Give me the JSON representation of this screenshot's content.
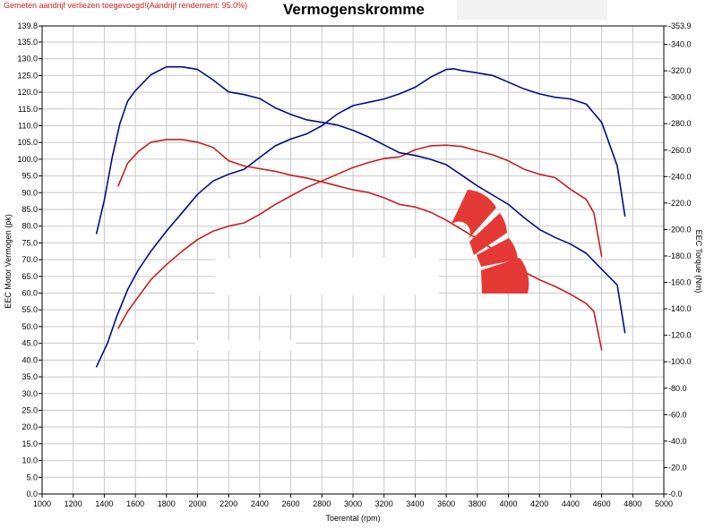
{
  "header": {
    "note": "Gemeten aandrijf verliezen toegevoegd!(Aandrijf rendement: 95.0%)",
    "title": "Vermogenskromme"
  },
  "chart_data": {
    "type": "line",
    "title": "Vermogenskromme",
    "xlabel": "Toerental (rpm)",
    "ylabel_left": "EEC Motor Vermogen (pk)",
    "ylabel_right": "EEC Torque (Nm)",
    "xlim": [
      1000,
      5000
    ],
    "ylim_left": [
      0,
      139.8
    ],
    "ylim_right": [
      0,
      353.9
    ],
    "grid": true,
    "x_ticks": [
      "1000",
      "1200",
      "1400",
      "1600",
      "1800",
      "2000",
      "2200",
      "2400",
      "2600",
      "2800",
      "3000",
      "3200",
      "3400",
      "3600",
      "3800",
      "4000",
      "4200",
      "4400",
      "4600",
      "4800",
      "5000"
    ],
    "y_left_ticks": [
      "0.0",
      "5.0",
      "10.0",
      "15.0",
      "20.0",
      "25.0",
      "30.0",
      "35.0",
      "40.0",
      "45.0",
      "50.0",
      "55.0",
      "60.0",
      "65.0",
      "70.0",
      "75.0",
      "80.0",
      "85.0",
      "90.0",
      "95.0",
      "100.0",
      "105.0",
      "110.0",
      "115.0",
      "120.0",
      "125.0",
      "130.0",
      "135.0",
      "139.8"
    ],
    "y_right_ticks": [
      "-0.0",
      "-20.0",
      "-40.0",
      "-60.0",
      "-80.0",
      "-100.0",
      "-120.0",
      "-140.0",
      "-160.0",
      "-180.0",
      "-200.0",
      "-220.0",
      "-240.0",
      "-260.0",
      "-280.0",
      "-300.0",
      "-320.0",
      "-340.0",
      "-353.9"
    ],
    "series": [
      {
        "axis": "left",
        "color": "#000c8a",
        "x": [
          1350,
          1420,
          1480,
          1550,
          1620,
          1700,
          1800,
          1900,
          2000,
          2100,
          2200,
          2300,
          2400,
          2500,
          2600,
          2700,
          2800,
          2900,
          3000,
          3100,
          3200,
          3300,
          3400,
          3500,
          3600,
          3650,
          3700,
          3800,
          3900,
          4000,
          4100,
          4200,
          4300,
          4400,
          4500,
          4600,
          4700,
          4750
        ],
        "y": [
          38.0,
          45.0,
          53.0,
          61.0,
          67.0,
          72.5,
          78.5,
          84.0,
          89.5,
          93.5,
          95.5,
          97.0,
          100.5,
          104.0,
          106.0,
          107.5,
          110.0,
          113.5,
          116.0,
          117.0,
          118.0,
          119.5,
          121.5,
          124.5,
          126.8,
          127.0,
          126.5,
          125.8,
          125.0,
          123.0,
          121.0,
          119.5,
          118.5,
          118.0,
          116.5,
          111.0,
          98.0,
          83.0
        ]
      },
      {
        "axis": "left",
        "color": "#c81e1e",
        "x": [
          1490,
          1550,
          1620,
          1700,
          1800,
          1900,
          2000,
          2100,
          2200,
          2300,
          2400,
          2500,
          2600,
          2700,
          2800,
          2900,
          3000,
          3100,
          3200,
          3300,
          3400,
          3500,
          3600,
          3700,
          3800,
          3900,
          4000,
          4100,
          4200,
          4300,
          4400,
          4500,
          4550,
          4600
        ],
        "y": [
          49.5,
          54.5,
          59.0,
          64.0,
          68.5,
          72.5,
          76.0,
          78.5,
          80.0,
          81.0,
          83.5,
          86.5,
          89.0,
          91.5,
          93.5,
          95.5,
          97.5,
          99.0,
          100.2,
          100.7,
          102.8,
          104.0,
          104.2,
          103.8,
          102.5,
          101.3,
          99.5,
          97.0,
          95.5,
          94.5,
          91.0,
          88.0,
          84.0,
          71.0
        ]
      },
      {
        "axis": "right",
        "color": "#000c8a",
        "x": [
          1350,
          1400,
          1450,
          1500,
          1550,
          1600,
          1700,
          1800,
          1900,
          2000,
          2100,
          2200,
          2300,
          2400,
          2500,
          2600,
          2700,
          2800,
          2900,
          3000,
          3100,
          3200,
          3300,
          3400,
          3500,
          3600,
          3700,
          3800,
          3900,
          4000,
          4100,
          4200,
          4300,
          4400,
          4500,
          4600,
          4700,
          4750
        ],
        "y": [
          197,
          222,
          254,
          280,
          297,
          305,
          317,
          323,
          323,
          321,
          313,
          304,
          302,
          299,
          292,
          287,
          283,
          281,
          279,
          275,
          270,
          264,
          258,
          256,
          253,
          249,
          241,
          233,
          226,
          219,
          209,
          200,
          194,
          189,
          182,
          170,
          158,
          122
        ]
      },
      {
        "axis": "right",
        "color": "#c81e1e",
        "x": [
          1490,
          1550,
          1620,
          1700,
          1800,
          1900,
          2000,
          2100,
          2200,
          2300,
          2400,
          2500,
          2600,
          2700,
          2800,
          2900,
          3000,
          3100,
          3200,
          3300,
          3400,
          3500,
          3600,
          3700,
          3800,
          3900,
          4000,
          4100,
          4200,
          4300,
          4400,
          4500,
          4550,
          4600
        ],
        "y": [
          233,
          250,
          259,
          266,
          268,
          268,
          266,
          262,
          252,
          248,
          246,
          244,
          241,
          239,
          236,
          233,
          230,
          228,
          224,
          219,
          217,
          213,
          207,
          200,
          193,
          185,
          178,
          168,
          162,
          157,
          151,
          144,
          138,
          109
        ]
      }
    ]
  }
}
